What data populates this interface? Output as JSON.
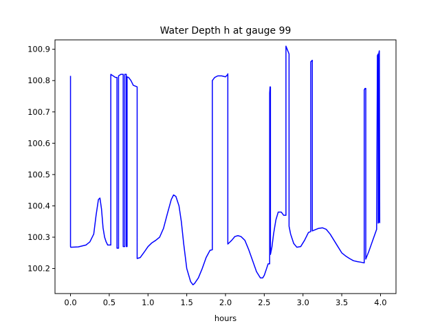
{
  "chart_data": {
    "type": "line",
    "title": "Water Depth h at gauge 99",
    "xlabel": "hours",
    "ylabel": "",
    "xlim": [
      -0.2,
      4.2
    ],
    "ylim": [
      100.12,
      100.93
    ],
    "xticks": [
      0.0,
      0.5,
      1.0,
      1.5,
      2.0,
      2.5,
      3.0,
      3.5,
      4.0
    ],
    "xtick_labels": [
      "0.0",
      "0.5",
      "1.0",
      "1.5",
      "2.0",
      "2.5",
      "3.0",
      "3.5",
      "4.0"
    ],
    "yticks": [
      100.2,
      100.3,
      100.4,
      100.5,
      100.6,
      100.7,
      100.8,
      100.9
    ],
    "ytick_labels": [
      "100.2",
      "100.3",
      "100.4",
      "100.5",
      "100.6",
      "100.7",
      "100.8",
      "100.9"
    ],
    "grid": false,
    "series": [
      {
        "color": "#0000ff",
        "x": [
          0.0,
          0.0,
          0.003,
          0.1,
          0.2,
          0.25,
          0.3,
          0.33,
          0.36,
          0.38,
          0.4,
          0.42,
          0.44,
          0.46,
          0.48,
          0.5,
          0.52,
          0.52,
          0.55,
          0.58,
          0.6,
          0.6,
          0.62,
          0.62,
          0.65,
          0.67,
          0.68,
          0.68,
          0.7,
          0.7,
          0.72,
          0.72,
          0.73,
          0.73,
          0.75,
          0.78,
          0.81,
          0.86,
          0.86,
          0.9,
          0.95,
          1.0,
          1.05,
          1.1,
          1.15,
          1.2,
          1.25,
          1.3,
          1.33,
          1.36,
          1.4,
          1.43,
          1.46,
          1.5,
          1.55,
          1.58,
          1.6,
          1.65,
          1.7,
          1.75,
          1.8,
          1.83,
          1.83,
          1.86,
          1.9,
          1.95,
          2.0,
          2.03,
          2.03,
          2.03,
          2.08,
          2.12,
          2.16,
          2.2,
          2.25,
          2.3,
          2.35,
          2.4,
          2.45,
          2.48,
          2.5,
          2.53,
          2.55,
          2.57,
          2.57,
          2.575,
          2.58,
          2.58,
          2.6,
          2.62,
          2.65,
          2.68,
          2.72,
          2.75,
          2.78,
          2.78,
          2.82,
          2.82,
          2.84,
          2.88,
          2.92,
          2.97,
          3.02,
          3.07,
          3.1,
          3.1,
          3.12,
          3.12,
          3.14,
          3.2,
          3.25,
          3.3,
          3.35,
          3.4,
          3.45,
          3.5,
          3.55,
          3.6,
          3.65,
          3.7,
          3.75,
          3.79,
          3.79,
          3.8,
          3.81,
          3.81,
          3.85,
          3.9,
          3.95,
          3.95,
          3.96,
          3.97,
          3.97,
          3.98,
          3.98,
          3.985,
          3.99
        ],
        "y": [
          100.815,
          100.27,
          100.268,
          100.269,
          100.275,
          100.285,
          100.31,
          100.37,
          100.42,
          100.425,
          100.39,
          100.33,
          100.3,
          100.285,
          100.275,
          100.275,
          100.275,
          100.82,
          100.815,
          100.81,
          100.81,
          100.265,
          100.265,
          100.815,
          100.82,
          100.82,
          100.82,
          100.27,
          100.27,
          100.82,
          100.82,
          100.27,
          100.27,
          100.812,
          100.81,
          100.8,
          100.785,
          100.78,
          100.232,
          100.235,
          100.252,
          100.27,
          100.282,
          100.29,
          100.3,
          100.328,
          100.375,
          100.42,
          100.435,
          100.43,
          100.4,
          100.35,
          100.28,
          100.2,
          100.158,
          100.148,
          100.152,
          100.17,
          100.2,
          100.235,
          100.258,
          100.26,
          100.8,
          100.81,
          100.815,
          100.815,
          100.812,
          100.82,
          100.822,
          100.278,
          100.29,
          100.302,
          100.305,
          100.302,
          100.29,
          100.26,
          100.225,
          100.19,
          100.17,
          100.17,
          100.178,
          100.2,
          100.215,
          100.215,
          100.76,
          100.78,
          100.78,
          100.245,
          100.27,
          100.31,
          100.355,
          100.38,
          100.38,
          100.37,
          100.37,
          100.91,
          100.885,
          100.335,
          100.31,
          100.28,
          100.268,
          100.27,
          100.29,
          100.315,
          100.318,
          100.86,
          100.865,
          100.32,
          100.322,
          100.328,
          100.33,
          100.325,
          100.31,
          100.29,
          100.27,
          100.25,
          100.24,
          100.232,
          100.225,
          100.222,
          100.22,
          100.218,
          100.77,
          100.775,
          100.775,
          100.23,
          100.255,
          100.29,
          100.325,
          100.33,
          100.88,
          100.885,
          100.345,
          100.35,
          100.89,
          100.895,
          100.345
        ]
      }
    ]
  }
}
